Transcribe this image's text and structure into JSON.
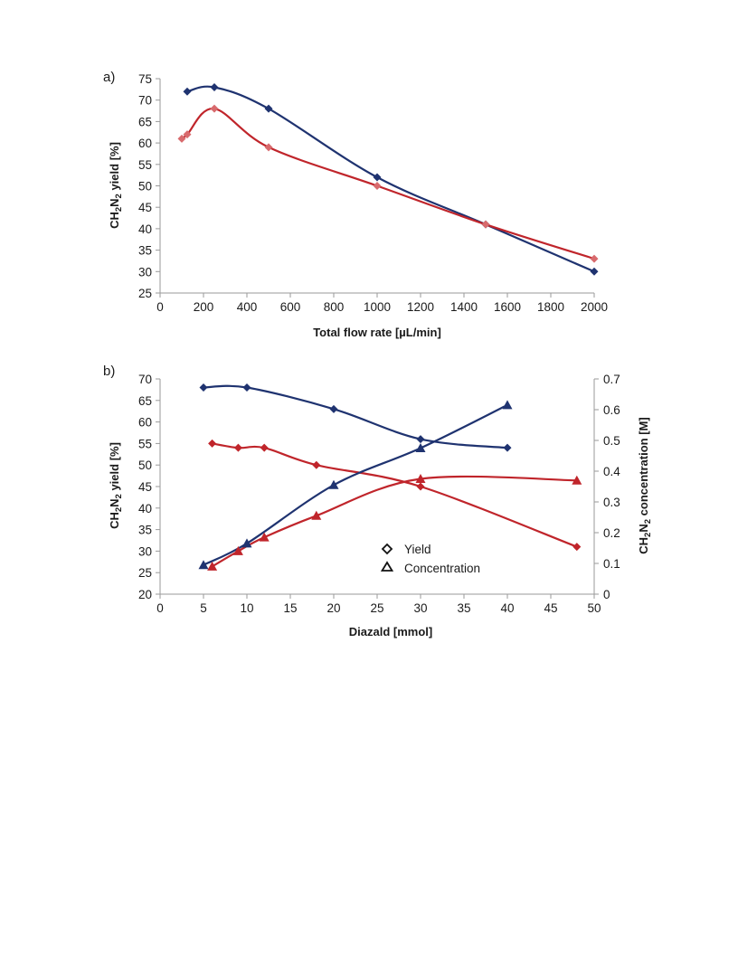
{
  "chart_data": [
    {
      "panel_label": "a)",
      "type": "line",
      "title": "",
      "xlabel": "Total flow rate [µL/min]",
      "ylabel_main": "CH",
      "ylabel_sub1": "2",
      "ylabel_mid": "N",
      "ylabel_sub2": "2",
      "ylabel_rest": " yield [%]",
      "xlim": [
        0,
        2000
      ],
      "ylim": [
        25,
        75
      ],
      "xticks": [
        0,
        200,
        400,
        600,
        800,
        1000,
        1200,
        1400,
        1600,
        1800,
        2000
      ],
      "yticks": [
        25,
        30,
        35,
        40,
        45,
        50,
        55,
        60,
        65,
        70,
        75
      ],
      "grid": false,
      "series": [
        {
          "color": "#1f3370",
          "marker": "diamond",
          "points": [
            [
              125,
              72
            ],
            [
              250,
              73
            ],
            [
              500,
              68
            ],
            [
              1000,
              52
            ],
            [
              1500,
              41
            ],
            [
              2000,
              30
            ]
          ]
        },
        {
          "color": "#c0252b",
          "marker_color": "#d86a6d",
          "marker": "diamond",
          "points": [
            [
              100,
              61
            ],
            [
              125,
              62
            ],
            [
              250,
              68
            ],
            [
              500,
              59
            ],
            [
              1000,
              50
            ],
            [
              1500,
              41
            ],
            [
              2000,
              33
            ]
          ]
        }
      ]
    },
    {
      "panel_label": "b)",
      "type": "line",
      "title": "",
      "xlabel": "Diazald [mmol]",
      "ylabel_main": "CH",
      "ylabel_sub1": "2",
      "ylabel_mid": "N",
      "ylabel_sub2": "2",
      "ylabel_rest": " yield  [%]",
      "y2label_main": "CH",
      "y2label_sub1": "2",
      "y2label_mid": "N",
      "y2label_sub2": "2",
      "y2label_rest": " concentration [M]",
      "xlim": [
        0,
        50
      ],
      "ylim": [
        20,
        70
      ],
      "y2lim": [
        0,
        0.7
      ],
      "xticks": [
        0,
        5,
        10,
        15,
        20,
        25,
        30,
        35,
        40,
        45,
        50
      ],
      "yticks": [
        20,
        25,
        30,
        35,
        40,
        45,
        50,
        55,
        60,
        65,
        70
      ],
      "y2ticks": [
        "0",
        "0.1",
        "0.2",
        "0.3",
        "0.4",
        "0.5",
        "0.6",
        "0.7"
      ],
      "grid": false,
      "legend": {
        "placement": "center",
        "entries": [
          {
            "label": "Yield",
            "marker": "diamond-open"
          },
          {
            "label": "Concentration",
            "marker": "triangle-open"
          }
        ]
      },
      "series": [
        {
          "color": "#1f3370",
          "marker": "diamond",
          "axis": "left",
          "points": [
            [
              5,
              68
            ],
            [
              10,
              68
            ],
            [
              20,
              63
            ],
            [
              30,
              56
            ],
            [
              40,
              54
            ]
          ]
        },
        {
          "color": "#c0252b",
          "marker": "diamond",
          "axis": "left",
          "points": [
            [
              6,
              55
            ],
            [
              9,
              54
            ],
            [
              12,
              54
            ],
            [
              18,
              50
            ],
            [
              30,
              45
            ],
            [
              48,
              31
            ]
          ]
        },
        {
          "color": "#1f3370",
          "marker": "triangle",
          "axis": "right",
          "points": [
            [
              5,
              0.095
            ],
            [
              10,
              0.165
            ],
            [
              20,
              0.355
            ],
            [
              30,
              0.475
            ],
            [
              40,
              0.615
            ]
          ]
        },
        {
          "color": "#c0252b",
          "marker": "triangle",
          "axis": "right",
          "points": [
            [
              6,
              0.09
            ],
            [
              9,
              0.14
            ],
            [
              12,
              0.185
            ],
            [
              18,
              0.255
            ],
            [
              30,
              0.375
            ],
            [
              48,
              0.37
            ]
          ]
        }
      ]
    }
  ]
}
